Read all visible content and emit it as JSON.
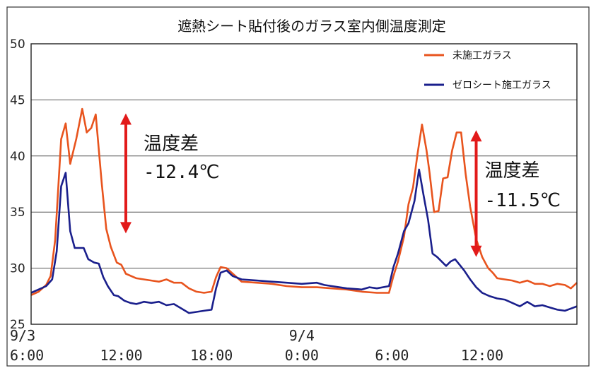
{
  "chart_data": {
    "type": "line",
    "title": "遮熱シート貼付後のガラス室内側温度測定",
    "ylim": [
      25,
      50
    ],
    "yticks": [
      25,
      30,
      35,
      40,
      45,
      50
    ],
    "xlim": [
      0,
      36.3
    ],
    "xticks": [
      {
        "x": 0,
        "line1": "9/3",
        "line2": "6:00"
      },
      {
        "x": 6,
        "line1": "",
        "line2": "12:00"
      },
      {
        "x": 12,
        "line1": "",
        "line2": "18:00"
      },
      {
        "x": 18,
        "line1": "9/4",
        "line2": "0:00"
      },
      {
        "x": 24,
        "line1": "",
        "line2": "6:00"
      },
      {
        "x": 30,
        "line1": "",
        "line2": "12:00"
      }
    ],
    "grid": "horizontal",
    "legend_position": "top-right",
    "series": [
      {
        "name": "未施工ガラス",
        "color": "#e8541e",
        "points": [
          [
            0,
            27.6
          ],
          [
            0.5,
            27.9
          ],
          [
            1.0,
            28.5
          ],
          [
            1.3,
            29.3
          ],
          [
            1.6,
            32.5
          ],
          [
            2.0,
            41.5
          ],
          [
            2.3,
            42.9
          ],
          [
            2.6,
            39.3
          ],
          [
            3.0,
            41.5
          ],
          [
            3.4,
            44.2
          ],
          [
            3.7,
            42.1
          ],
          [
            4.0,
            42.5
          ],
          [
            4.3,
            43.7
          ],
          [
            4.7,
            37.5
          ],
          [
            5.0,
            33.5
          ],
          [
            5.3,
            31.9
          ],
          [
            5.7,
            30.5
          ],
          [
            6.0,
            30.3
          ],
          [
            6.3,
            29.5
          ],
          [
            7.0,
            29.1
          ],
          [
            7.5,
            29.0
          ],
          [
            8.0,
            28.9
          ],
          [
            8.5,
            28.8
          ],
          [
            9.0,
            29.0
          ],
          [
            9.5,
            28.7
          ],
          [
            10.0,
            28.7
          ],
          [
            10.5,
            28.2
          ],
          [
            11.0,
            27.9
          ],
          [
            11.5,
            27.8
          ],
          [
            12.0,
            27.9
          ],
          [
            12.3,
            29.2
          ],
          [
            12.6,
            30.1
          ],
          [
            13.0,
            30.0
          ],
          [
            13.5,
            29.4
          ],
          [
            14.0,
            28.8
          ],
          [
            15.0,
            28.7
          ],
          [
            16.0,
            28.6
          ],
          [
            17.0,
            28.4
          ],
          [
            18.0,
            28.3
          ],
          [
            19.0,
            28.3
          ],
          [
            20.0,
            28.2
          ],
          [
            21.0,
            28.1
          ],
          [
            22.0,
            27.9
          ],
          [
            23.0,
            27.8
          ],
          [
            23.8,
            27.8
          ],
          [
            24.1,
            29.3
          ],
          [
            24.4,
            30.6
          ],
          [
            24.8,
            32.8
          ],
          [
            25.1,
            35.7
          ],
          [
            25.4,
            37.2
          ],
          [
            25.7,
            40.2
          ],
          [
            26.0,
            42.8
          ],
          [
            26.3,
            40.5
          ],
          [
            26.5,
            38.5
          ],
          [
            26.8,
            35.0
          ],
          [
            27.1,
            35.1
          ],
          [
            27.4,
            38.0
          ],
          [
            27.7,
            38.1
          ],
          [
            28.0,
            40.5
          ],
          [
            28.3,
            42.1
          ],
          [
            28.6,
            42.1
          ],
          [
            28.9,
            38.4
          ],
          [
            29.2,
            35.5
          ],
          [
            29.6,
            32.6
          ],
          [
            30.0,
            31.0
          ],
          [
            30.4,
            30.0
          ],
          [
            30.7,
            29.6
          ],
          [
            31.0,
            29.1
          ],
          [
            31.5,
            29.0
          ],
          [
            32.0,
            28.9
          ],
          [
            32.5,
            28.7
          ],
          [
            33.0,
            28.9
          ],
          [
            33.5,
            28.6
          ],
          [
            34.0,
            28.6
          ],
          [
            34.5,
            28.4
          ],
          [
            35.0,
            28.6
          ],
          [
            35.5,
            28.5
          ],
          [
            35.9,
            28.2
          ],
          [
            36.3,
            28.7
          ]
        ]
      },
      {
        "name": "ゼロシート施工ガラス",
        "color": "#1a1f8c",
        "points": [
          [
            0,
            27.8
          ],
          [
            0.5,
            28.1
          ],
          [
            1.0,
            28.4
          ],
          [
            1.4,
            29.0
          ],
          [
            1.7,
            31.5
          ],
          [
            2.0,
            37.3
          ],
          [
            2.3,
            38.5
          ],
          [
            2.6,
            33.3
          ],
          [
            2.9,
            31.8
          ],
          [
            3.5,
            31.8
          ],
          [
            3.8,
            30.8
          ],
          [
            4.2,
            30.5
          ],
          [
            4.5,
            30.4
          ],
          [
            4.8,
            29.2
          ],
          [
            5.1,
            28.4
          ],
          [
            5.5,
            27.6
          ],
          [
            5.8,
            27.5
          ],
          [
            6.2,
            27.1
          ],
          [
            6.6,
            26.9
          ],
          [
            7.0,
            26.8
          ],
          [
            7.5,
            27.0
          ],
          [
            8.0,
            26.9
          ],
          [
            8.5,
            27.0
          ],
          [
            9.0,
            26.7
          ],
          [
            9.5,
            26.8
          ],
          [
            10.0,
            26.4
          ],
          [
            10.5,
            26.0
          ],
          [
            11.0,
            26.1
          ],
          [
            11.5,
            26.2
          ],
          [
            12.0,
            26.3
          ],
          [
            12.3,
            28.2
          ],
          [
            12.6,
            29.6
          ],
          [
            13.0,
            29.8
          ],
          [
            13.4,
            29.3
          ],
          [
            14.0,
            29.0
          ],
          [
            15.0,
            28.9
          ],
          [
            16.0,
            28.8
          ],
          [
            17.0,
            28.7
          ],
          [
            18.0,
            28.6
          ],
          [
            19.0,
            28.7
          ],
          [
            19.5,
            28.5
          ],
          [
            20.0,
            28.4
          ],
          [
            21.0,
            28.2
          ],
          [
            22.0,
            28.1
          ],
          [
            22.5,
            28.3
          ],
          [
            23.0,
            28.2
          ],
          [
            23.8,
            28.4
          ],
          [
            24.1,
            30.1
          ],
          [
            24.4,
            31.3
          ],
          [
            24.8,
            33.3
          ],
          [
            25.1,
            34.0
          ],
          [
            25.5,
            36.0
          ],
          [
            25.8,
            38.8
          ],
          [
            26.1,
            36.5
          ],
          [
            26.4,
            34.3
          ],
          [
            26.7,
            31.3
          ],
          [
            27.0,
            31.0
          ],
          [
            27.3,
            30.6
          ],
          [
            27.6,
            30.2
          ],
          [
            27.9,
            30.6
          ],
          [
            28.2,
            30.8
          ],
          [
            28.5,
            30.3
          ],
          [
            28.8,
            29.8
          ],
          [
            29.2,
            29.0
          ],
          [
            29.6,
            28.3
          ],
          [
            30.0,
            27.8
          ],
          [
            30.5,
            27.5
          ],
          [
            31.0,
            27.3
          ],
          [
            31.5,
            27.2
          ],
          [
            32.0,
            26.9
          ],
          [
            32.5,
            26.6
          ],
          [
            33.0,
            27.0
          ],
          [
            33.5,
            26.6
          ],
          [
            34.0,
            26.7
          ],
          [
            34.5,
            26.5
          ],
          [
            35.0,
            26.3
          ],
          [
            35.5,
            26.2
          ],
          [
            35.9,
            26.4
          ],
          [
            36.3,
            26.6
          ]
        ]
      }
    ],
    "annotations": [
      {
        "x": 6.3,
        "y_top": 43.8,
        "y_bottom": 33.1,
        "color": "#e21a1a",
        "line1": "温度差",
        "line2": "-12.4℃"
      },
      {
        "x": 29.6,
        "y_top": 42.3,
        "y_bottom": 31.0,
        "color": "#e21a1a",
        "line1": "温度差",
        "line2": "-11.5℃"
      }
    ]
  }
}
